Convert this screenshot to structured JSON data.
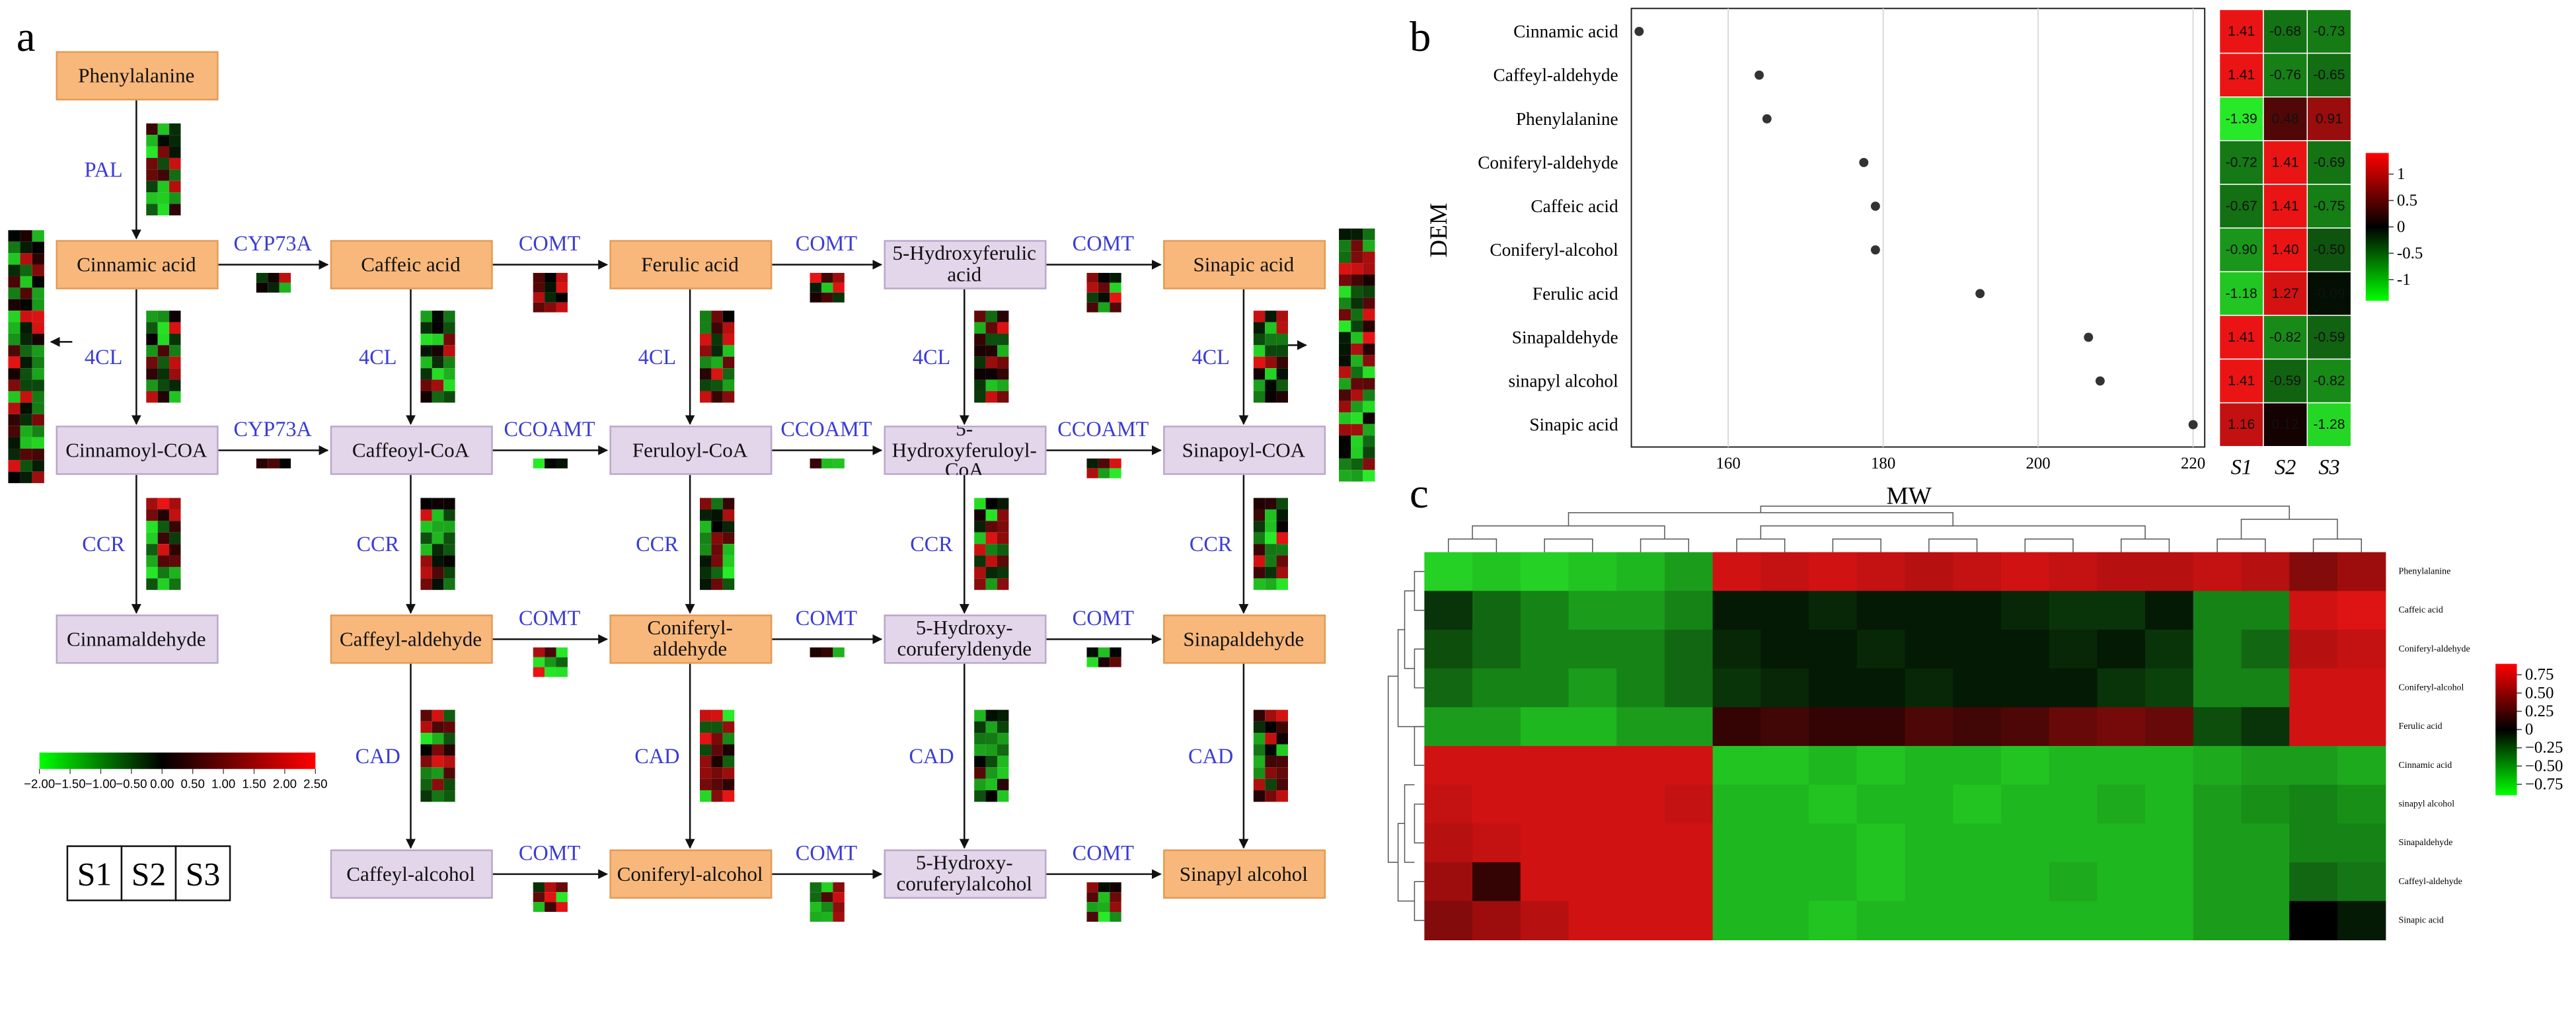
{
  "panel_labels": [
    "a",
    "b",
    "c"
  ],
  "pathway": {
    "nodes": [
      {
        "label": "Phenylalanine",
        "color": "#f8b87b"
      },
      {
        "label": "Cinnamic acid",
        "color": "#f8b87b"
      },
      {
        "label": "Caffeic acid",
        "color": "#f8b87b"
      },
      {
        "label": "Ferulic acid",
        "color": "#f8b87b"
      },
      {
        "label": "5-Hydroxyferulic acid",
        "color": "#e3d5ea"
      },
      {
        "label": "Sinapic acid",
        "color": "#f8b87b"
      },
      {
        "label": "Cinnamoyl-COA",
        "color": "#e3d5ea"
      },
      {
        "label": "Caffeoyl-CoA",
        "color": "#e3d5ea"
      },
      {
        "label": "Feruloyl-CoA",
        "color": "#e3d5ea"
      },
      {
        "label": "5-Hydroxyferuloyl-CoA",
        "color": "#e3d5ea"
      },
      {
        "label": "Sinapoyl-COA",
        "color": "#e3d5ea"
      },
      {
        "label": "Cinnamaldehyde",
        "color": "#e3d5ea"
      },
      {
        "label": "Caffeyl-aldehyde",
        "color": "#f8b87b"
      },
      {
        "label": "Coniferyl-aldehyde",
        "color": "#f8b87b"
      },
      {
        "label": "5-Hydroxy-coruferyldenyde",
        "color": "#e3d5ea"
      },
      {
        "label": "Sinapaldehyde",
        "color": "#f8b87b"
      },
      {
        "label": "Caffeyl-alcohol",
        "color": "#e3d5ea"
      },
      {
        "label": "Coniferyl-alcohol",
        "color": "#f8b87b"
      },
      {
        "label": "5-Hydroxy-coruferylalcohol",
        "color": "#e3d5ea"
      },
      {
        "label": "Sinapyl alcohol",
        "color": "#f8b87b"
      }
    ],
    "edges": [
      {
        "from": 0,
        "to": 1,
        "enzyme": "PAL"
      },
      {
        "from": 1,
        "to": 2,
        "enzyme": "CYP73A"
      },
      {
        "from": 2,
        "to": 3,
        "enzyme": "COMT"
      },
      {
        "from": 3,
        "to": 4,
        "enzyme": "COMT"
      },
      {
        "from": 4,
        "to": 5,
        "enzyme": "COMT"
      },
      {
        "from": 1,
        "to": 6,
        "enzyme": "4CL"
      },
      {
        "from": 2,
        "to": 7,
        "enzyme": "4CL"
      },
      {
        "from": 3,
        "to": 8,
        "enzyme": "4CL"
      },
      {
        "from": 4,
        "to": 9,
        "enzyme": "4CL"
      },
      {
        "from": 5,
        "to": 10,
        "enzyme": "4CL"
      },
      {
        "from": 6,
        "to": 7,
        "enzyme": "CYP73A"
      },
      {
        "from": 7,
        "to": 8,
        "enzyme": "CCOAMT"
      },
      {
        "from": 8,
        "to": 9,
        "enzyme": "CCOAMT"
      },
      {
        "from": 9,
        "to": 10,
        "enzyme": "CCOAMT"
      },
      {
        "from": 6,
        "to": 11,
        "enzyme": "CCR"
      },
      {
        "from": 7,
        "to": 12,
        "enzyme": "CCR"
      },
      {
        "from": 8,
        "to": 13,
        "enzyme": "CCR"
      },
      {
        "from": 9,
        "to": 14,
        "enzyme": "CCR"
      },
      {
        "from": 10,
        "to": 15,
        "enzyme": "CCR"
      },
      {
        "from": 12,
        "to": 13,
        "enzyme": "COMT"
      },
      {
        "from": 13,
        "to": 14,
        "enzyme": "COMT"
      },
      {
        "from": 14,
        "to": 15,
        "enzyme": "COMT"
      },
      {
        "from": 12,
        "to": 16,
        "enzyme": "CAD"
      },
      {
        "from": 13,
        "to": 17,
        "enzyme": "CAD"
      },
      {
        "from": 14,
        "to": 18,
        "enzyme": "CAD"
      },
      {
        "from": 15,
        "to": 19,
        "enzyme": "CAD"
      },
      {
        "from": 16,
        "to": 17,
        "enzyme": "COMT"
      },
      {
        "from": 17,
        "to": 18,
        "enzyme": "COMT"
      },
      {
        "from": 18,
        "to": 19,
        "enzyme": "COMT"
      }
    ],
    "legend": {
      "lim": [
        -2,
        2.5
      ],
      "ticks": [
        {
          "value": -2,
          "label": "−2.00"
        },
        {
          "value": -1.5,
          "label": "−1.50"
        },
        {
          "value": -1,
          "label": "−1.00"
        },
        {
          "value": -0.5,
          "label": "−0.50"
        },
        {
          "value": 0,
          "label": "0.00"
        },
        {
          "value": 0.5,
          "label": "0.50"
        },
        {
          "value": 1,
          "label": "1.00"
        },
        {
          "value": 1.5,
          "label": "1.50"
        },
        {
          "value": 2,
          "label": "2.00"
        },
        {
          "value": 2.5,
          "label": "2.50"
        }
      ]
    },
    "samples": [
      "S1",
      "S2",
      "S3"
    ]
  },
  "chart_data": [
    {
      "type": "scatter",
      "xlabel": "MW",
      "ylabel": "DEM",
      "categories": [
        "Cinnamic acid",
        "Caffeyl-aldehyde",
        "Phenylalanine",
        "Coniferyl-aldehyde",
        "Caffeic acid",
        "Coniferyl-alcohol",
        "Ferulic acid",
        "Sinapaldehyde",
        "sinapyl alcohol",
        "Sinapic acid"
      ],
      "values": [
        148.5,
        164,
        165,
        177.5,
        179,
        179,
        192.5,
        206.5,
        208,
        220
      ],
      "xlim": [
        147.5,
        221.5
      ],
      "xticks": [
        160,
        180,
        200,
        220
      ],
      "grid": true,
      "color": "#333333",
      "heatmap": {
        "columns": [
          "S1",
          "S2",
          "S3"
        ],
        "values": [
          [
            1.41,
            -0.68,
            -0.73
          ],
          [
            1.41,
            -0.76,
            -0.65
          ],
          [
            -1.39,
            0.48,
            0.91
          ],
          [
            -0.72,
            1.41,
            -0.69
          ],
          [
            -0.67,
            1.41,
            -0.75
          ],
          [
            -0.9,
            1.4,
            -0.5
          ],
          [
            -1.18,
            1.27,
            -0.09
          ],
          [
            1.41,
            -0.82,
            -0.59
          ],
          [
            1.41,
            -0.59,
            -0.82
          ],
          [
            1.16,
            0.12,
            -1.28
          ]
        ],
        "value_labels": [
          [
            "1.41",
            "-0.68",
            "-0.73"
          ],
          [
            "1.41",
            "-0.76",
            "-0.65"
          ],
          [
            "-1.39",
            "0.48",
            "0.91"
          ],
          [
            "-0.72",
            "1.41",
            "-0.69"
          ],
          [
            "-0.67",
            "1.41",
            "-0.75"
          ],
          [
            "-0.90",
            "1.40",
            "-0.50"
          ],
          [
            "-1.18",
            "1.27",
            "-0.09"
          ],
          [
            "1.41",
            "-0.82",
            "-0.59"
          ],
          [
            "1.41",
            "-0.59",
            "-0.82"
          ],
          [
            "1.16",
            "0.12",
            "-1.28"
          ]
        ],
        "clim": [
          -1.4,
          1.4
        ],
        "cticks": [
          1,
          0.5,
          0,
          -0.5,
          -1
        ]
      }
    },
    {
      "type": "heatmap",
      "rows": [
        "Phenylalanine",
        "Caffeic acid",
        "Coniferyl-aldehyde",
        "Coniferyl-alcohol",
        "Ferulic acid",
        "Cinnamic acid",
        "sinapyl alcohol",
        "Sinapaldehyde",
        "Caffeyl-aldehyde",
        "Sinapic acid"
      ],
      "values": [
        [
          -0.8,
          -0.75,
          -0.8,
          -0.75,
          -0.7,
          -0.6,
          0.8,
          0.75,
          0.8,
          0.75,
          0.7,
          0.75,
          0.8,
          0.75,
          0.7,
          0.7,
          0.75,
          0.7,
          0.5,
          0.6
        ],
        [
          -0.2,
          -0.4,
          -0.5,
          -0.6,
          -0.6,
          -0.5,
          -0.1,
          -0.1,
          -0.15,
          -0.1,
          -0.1,
          -0.1,
          -0.15,
          -0.2,
          -0.2,
          -0.1,
          -0.5,
          -0.5,
          0.8,
          0.85
        ],
        [
          -0.3,
          -0.4,
          -0.5,
          -0.5,
          -0.5,
          -0.4,
          -0.15,
          -0.1,
          -0.1,
          -0.15,
          -0.1,
          -0.1,
          -0.1,
          -0.15,
          -0.1,
          -0.2,
          -0.5,
          -0.4,
          0.7,
          0.75
        ],
        [
          -0.4,
          -0.5,
          -0.5,
          -0.6,
          -0.5,
          -0.4,
          -0.2,
          -0.15,
          -0.1,
          -0.1,
          -0.15,
          -0.1,
          -0.1,
          -0.1,
          -0.2,
          -0.25,
          -0.5,
          -0.5,
          0.8,
          0.8
        ],
        [
          -0.6,
          -0.6,
          -0.7,
          -0.7,
          -0.6,
          -0.6,
          0.2,
          0.25,
          0.2,
          0.2,
          0.3,
          0.25,
          0.3,
          0.4,
          0.45,
          0.4,
          -0.3,
          -0.2,
          0.8,
          0.8
        ],
        [
          0.8,
          0.8,
          0.8,
          0.8,
          0.8,
          0.8,
          -0.75,
          -0.75,
          -0.7,
          -0.75,
          -0.7,
          -0.7,
          -0.75,
          -0.7,
          -0.7,
          -0.7,
          -0.65,
          -0.6,
          -0.6,
          -0.65
        ],
        [
          0.75,
          0.8,
          0.8,
          0.8,
          0.8,
          0.75,
          -0.7,
          -0.7,
          -0.75,
          -0.7,
          -0.7,
          -0.75,
          -0.7,
          -0.7,
          -0.65,
          -0.7,
          -0.6,
          -0.55,
          -0.5,
          -0.55
        ],
        [
          0.7,
          0.75,
          0.8,
          0.8,
          0.8,
          0.8,
          -0.7,
          -0.7,
          -0.7,
          -0.75,
          -0.7,
          -0.7,
          -0.7,
          -0.7,
          -0.7,
          -0.7,
          -0.6,
          -0.6,
          -0.5,
          -0.5
        ],
        [
          0.6,
          0.2,
          0.8,
          0.8,
          0.8,
          0.8,
          -0.7,
          -0.7,
          -0.7,
          -0.75,
          -0.7,
          -0.7,
          -0.7,
          -0.65,
          -0.7,
          -0.7,
          -0.6,
          -0.6,
          -0.4,
          -0.45
        ],
        [
          0.5,
          0.6,
          0.7,
          0.8,
          0.8,
          0.8,
          -0.7,
          -0.7,
          -0.75,
          -0.7,
          -0.7,
          -0.7,
          -0.7,
          -0.7,
          -0.7,
          -0.7,
          -0.6,
          -0.6,
          0,
          -0.1
        ]
      ],
      "clim": [
        -0.9,
        0.9
      ],
      "cticks": [
        0.75,
        {
          "value": 0.5,
          "label": "0.50"
        },
        0.25,
        0,
        {
          "value": -0.25,
          "label": "−0.25"
        },
        {
          "value": -0.5,
          "label": "−0.50"
        },
        {
          "value": -0.75,
          "label": "−0.75"
        }
      ]
    }
  ]
}
